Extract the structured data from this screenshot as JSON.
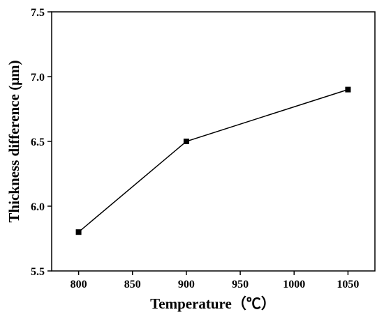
{
  "chart_data": {
    "type": "line",
    "title": "",
    "xlabel": "Temperature（℃）",
    "ylabel": "Thickness difference (μm)",
    "x": [
      800,
      900,
      1050
    ],
    "series": [
      {
        "values": [
          5.8,
          6.5,
          6.9
        ]
      }
    ],
    "xlim": [
      775,
      1075
    ],
    "ylim": [
      5.5,
      7.5
    ],
    "xticks": [
      "800",
      "850",
      "900",
      "950",
      "1000",
      "1050"
    ],
    "yticks": [
      "5.5",
      "6.0",
      "6.5",
      "7.0",
      "7.5"
    ],
    "marker": "square",
    "line_color": "#000000",
    "grid": false,
    "legend": "none"
  }
}
